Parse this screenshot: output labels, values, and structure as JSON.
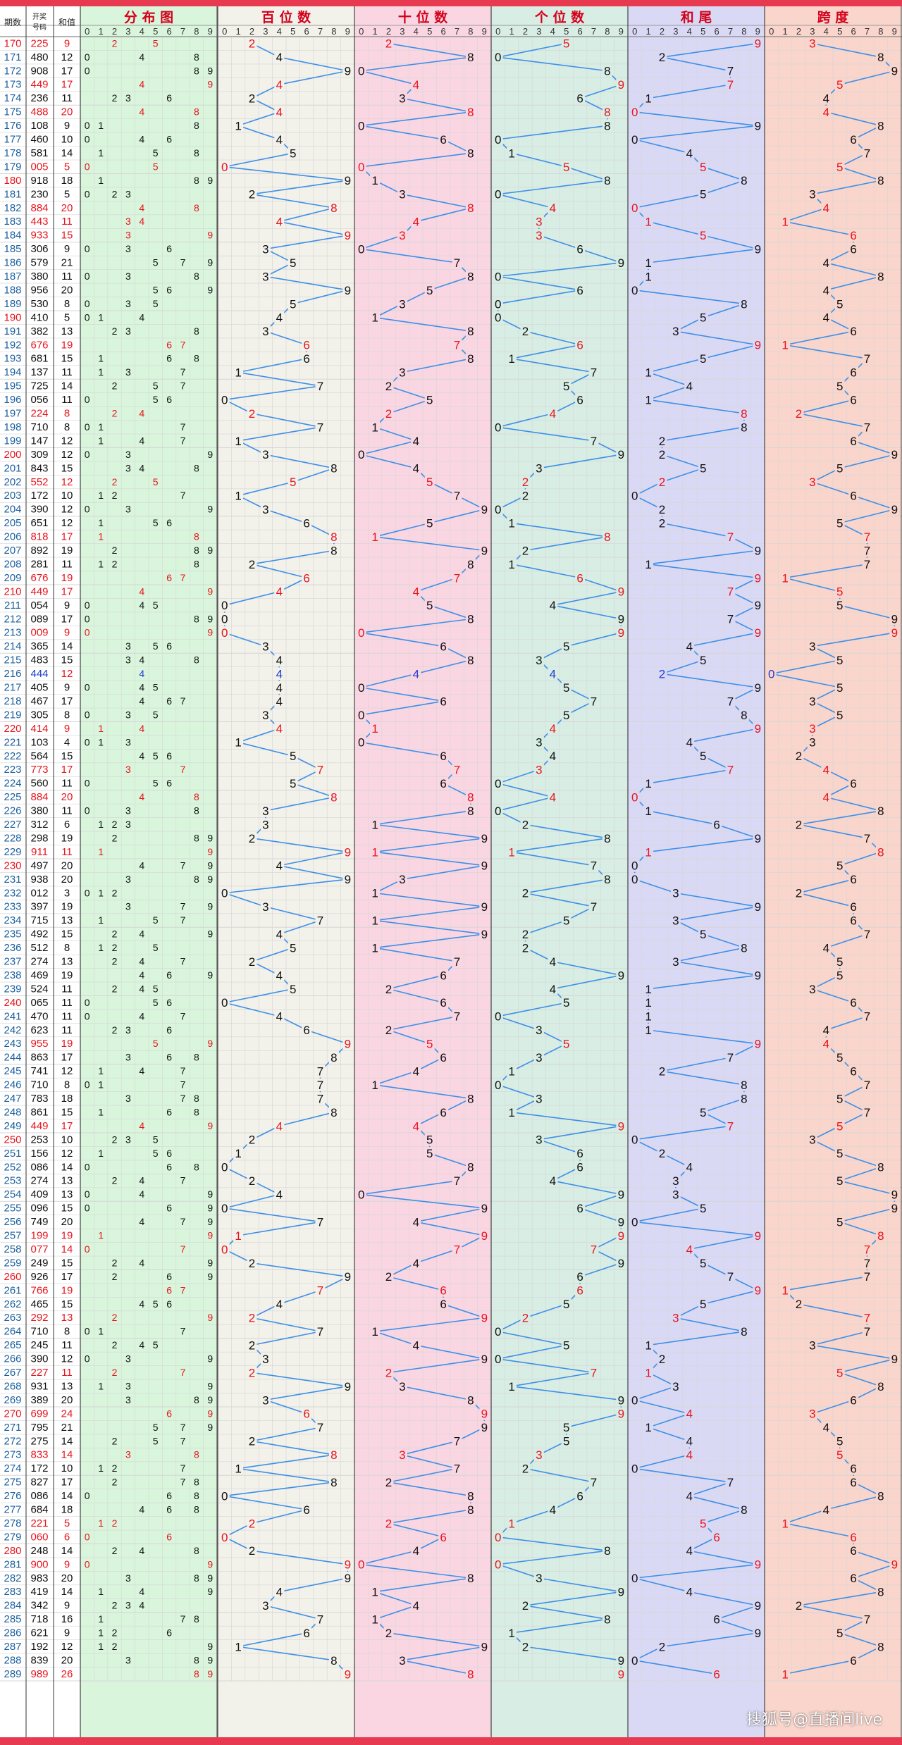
{
  "headers": {
    "period": "期数",
    "number_line1": "开奖",
    "number_line2": "号码",
    "sum": "和值",
    "groups": [
      "分布图",
      "百位数",
      "十位数",
      "个位数",
      "和尾",
      "跨度"
    ]
  },
  "digits": [
    "0",
    "1",
    "2",
    "3",
    "4",
    "5",
    "6",
    "7",
    "8",
    "9"
  ],
  "colors": {
    "header_red": "#d4001a",
    "line_blue": "#3d8fe8",
    "dist_bg": "#d9f5dc",
    "hundreds_bg": "#f2f1ea",
    "tens_bg": "#f9d6e2",
    "units_bg": "#d8ede4",
    "sumtail_bg": "#dad9f5",
    "span_bg": "#f9d5cc",
    "grid": "#d6d6d6",
    "highlight": "#e8141e",
    "triple": "#1f3cd0"
  },
  "watermark": "搜狐号@直播间live",
  "chart_data": {
    "type": "table",
    "title": "",
    "columns": [
      "期数",
      "开奖号码",
      "和值",
      "分布图",
      "百位数",
      "十位数",
      "个位数",
      "和尾",
      "跨度"
    ],
    "start_period": 170,
    "draws": [
      "225",
      "480",
      "908",
      "449",
      "236",
      "488",
      "108",
      "460",
      "581",
      "005",
      "918",
      "230",
      "884",
      "443",
      "933",
      "306",
      "579",
      "380",
      "956",
      "530",
      "410",
      "382",
      "676",
      "681",
      "137",
      "725",
      "056",
      "224",
      "710",
      "147",
      "309",
      "843",
      "552",
      "172",
      "390",
      "651",
      "818",
      "892",
      "281",
      "676",
      "449",
      "054",
      "089",
      "009",
      "365",
      "483",
      "444",
      "405",
      "467",
      "305",
      "414",
      "103",
      "564",
      "773",
      "560",
      "884",
      "380",
      "312",
      "298",
      "911",
      "497",
      "938",
      "012",
      "397",
      "715",
      "492",
      "512",
      "274",
      "469",
      "524",
      "065",
      "470",
      "623",
      "955",
      "863",
      "741",
      "710",
      "783",
      "861",
      "449",
      "253",
      "156",
      "086",
      "274",
      "409",
      "096",
      "749",
      "199",
      "077",
      "249",
      "926",
      "766",
      "465",
      "292",
      "710",
      "245",
      "390",
      "227",
      "931",
      "389",
      "699",
      "795",
      "275",
      "833",
      "172",
      "827",
      "086",
      "684",
      "221",
      "060",
      "248",
      "900",
      "983",
      "419",
      "342",
      "718",
      "621",
      "192",
      "839",
      "989"
    ]
  }
}
